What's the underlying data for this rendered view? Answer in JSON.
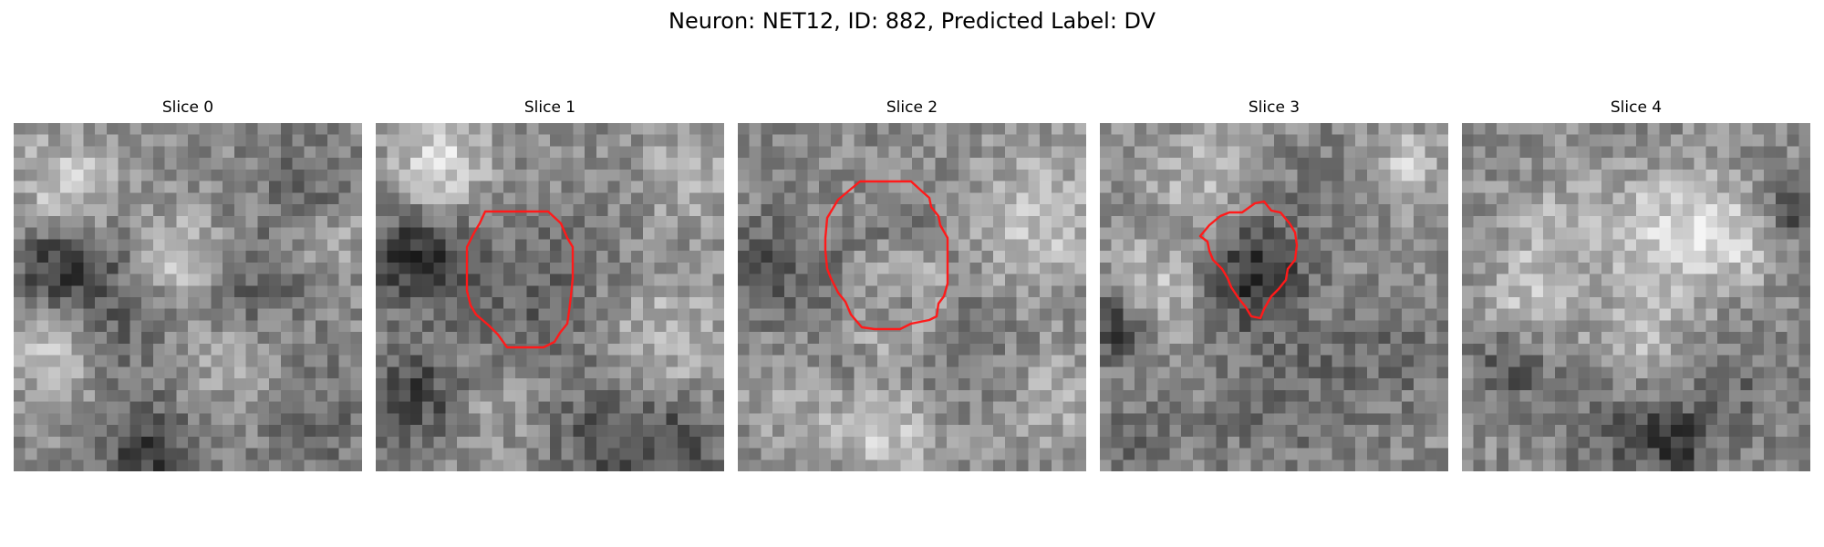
{
  "figure": {
    "title": "Neuron: NET12, ID: 882, Predicted Label: DV"
  },
  "style": {
    "contour_color": "#ff1a1a",
    "colormap": "grayscale"
  },
  "slices": [
    {
      "label": "Slice 0",
      "has_contour": false
    },
    {
      "label": "Slice 1",
      "has_contour": true
    },
    {
      "label": "Slice 2",
      "has_contour": true
    },
    {
      "label": "Slice 3",
      "has_contour": true
    },
    {
      "label": "Slice 4",
      "has_contour": false
    }
  ]
}
